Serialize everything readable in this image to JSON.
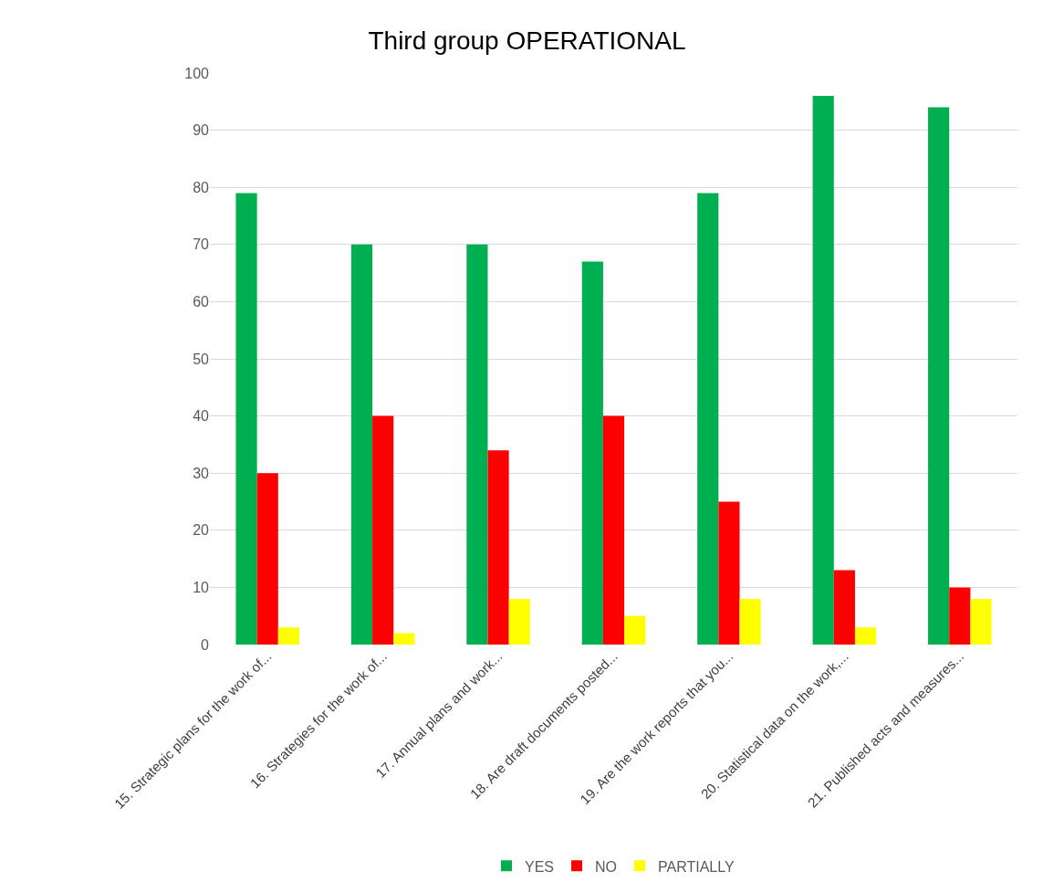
{
  "chart_data": {
    "type": "bar",
    "title": "Third group OPERATIONAL",
    "categories": [
      "15. Strategic plans for the work of...",
      "16. Strategies for the work of...",
      "17. Annual plans and work...",
      "18. Are draft documents posted...",
      "19. Are the work reports that you...",
      "20. Statistical data on the work,...",
      "21. Published acts and measures..."
    ],
    "series": [
      {
        "name": "YES",
        "color": "#00b050",
        "values": [
          79,
          70,
          70,
          67,
          79,
          96,
          94
        ]
      },
      {
        "name": "NO",
        "color": "#ff0000",
        "values": [
          30,
          40,
          34,
          40,
          25,
          13,
          10
        ]
      },
      {
        "name": "PARTIALLY",
        "color": "#ffff00",
        "values": [
          3,
          2,
          8,
          5,
          8,
          3,
          8
        ]
      }
    ],
    "ylim": [
      0,
      100
    ],
    "yticks": [
      0,
      10,
      20,
      30,
      40,
      50,
      60,
      70,
      80,
      90,
      100
    ],
    "grid": "y",
    "legend": "bottom"
  }
}
